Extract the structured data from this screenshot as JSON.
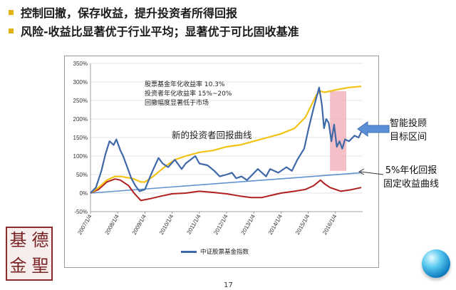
{
  "bullets": [
    {
      "text": "控制回撤，保存收益，提升投资者所得回报",
      "color": "#e0b214"
    },
    {
      "text": "风险-收益比显著优于行业平均；显著优于可比固收基准",
      "color": "#e0b214"
    }
  ],
  "annotations": {
    "stock_fund_return": "股票基金年化收益率 10.3%",
    "investor_return": "投资者年化收益率  15%~20%",
    "drawdown": "回撤幅度显著低于市场",
    "new_investor_curve": "新的投资者回报曲线",
    "smart_advisor_line1": "智能投顾",
    "smart_advisor_line2": "目标区间",
    "fixed_income_line1": "5%年化回报",
    "fixed_income_line2": "固定收益曲线"
  },
  "page_number": "17",
  "seal": {
    "chars": [
      "基",
      "德",
      "金",
      "聖"
    ]
  },
  "icons": [
    "arrow-left-icon",
    "pointer-arrow-icon",
    "globe-icon"
  ],
  "colors": {
    "index": "#3f68a8",
    "investor": "#f2c312",
    "drawdown": "#b01f1f",
    "fixed": "#5f92cf",
    "target_zone": "#f2a9b6"
  },
  "chart_data": {
    "type": "line",
    "title": "",
    "xlabel": "",
    "ylabel": "",
    "ylim": [
      -50,
      350
    ],
    "yticks": [
      "-50%",
      "0%",
      "50%",
      "100%",
      "150%",
      "200%",
      "250%",
      "300%",
      "350%"
    ],
    "xlim": [
      2007.0,
      2017.0
    ],
    "xticks": [
      "2007/1/4",
      "2008/1/4",
      "2009/1/4",
      "2010/1/4",
      "2011/1/4",
      "2012/1/4",
      "2013/1/4",
      "2014/1/4",
      "2015/1/4",
      "2016/1/4"
    ],
    "legend": {
      "position": "bottom",
      "entries": [
        "中证股票基金指数"
      ]
    },
    "target_zone": {
      "x_start": 2015.8,
      "x_end": 2016.4,
      "y_start": 60,
      "y_end": 275
    },
    "series": [
      {
        "name": "中证股票基金指数",
        "color": "#3f68a8",
        "width": 2.2,
        "x": [
          2007.0,
          2007.2,
          2007.4,
          2007.55,
          2007.7,
          2007.85,
          2007.95,
          2008.1,
          2008.2,
          2008.35,
          2008.5,
          2008.65,
          2008.8,
          2009.0,
          2009.25,
          2009.5,
          2009.65,
          2009.85,
          2010.1,
          2010.35,
          2010.5,
          2010.85,
          2011.0,
          2011.3,
          2011.55,
          2011.75,
          2012.0,
          2012.2,
          2012.35,
          2012.55,
          2012.75,
          2012.95,
          2013.15,
          2013.45,
          2013.6,
          2013.9,
          2014.2,
          2014.4,
          2014.6,
          2014.85,
          2015.0,
          2015.2,
          2015.4,
          2015.5,
          2015.58,
          2015.66,
          2015.75,
          2015.85,
          2015.95,
          2016.05,
          2016.15,
          2016.25,
          2016.35,
          2016.5,
          2016.7,
          2016.85,
          2016.95
        ],
        "y": [
          0,
          15,
          60,
          105,
          140,
          130,
          145,
          115,
          100,
          70,
          40,
          20,
          5,
          10,
          55,
          95,
          80,
          70,
          90,
          65,
          80,
          100,
          80,
          75,
          60,
          45,
          50,
          55,
          40,
          45,
          35,
          50,
          65,
          45,
          65,
          55,
          70,
          60,
          90,
          120,
          170,
          230,
          285,
          240,
          175,
          200,
          190,
          140,
          185,
          125,
          140,
          120,
          145,
          140,
          155,
          150,
          165
        ]
      },
      {
        "name": "投资者回报曲线",
        "color": "#f2c312",
        "width": 2.2,
        "x": [
          2007.0,
          2007.3,
          2007.6,
          2007.9,
          2008.1,
          2008.35,
          2008.6,
          2008.85,
          2009.0,
          2009.3,
          2009.55,
          2009.8,
          2010.1,
          2010.5,
          2011.0,
          2011.5,
          2012.0,
          2012.5,
          2013.0,
          2013.5,
          2014.0,
          2014.5,
          2014.9,
          2015.1,
          2015.3,
          2015.45,
          2015.6,
          2015.8,
          2016.1,
          2016.5,
          2016.95
        ],
        "y": [
          0,
          15,
          35,
          45,
          45,
          42,
          38,
          30,
          30,
          45,
          60,
          75,
          90,
          100,
          110,
          115,
          125,
          130,
          140,
          150,
          160,
          175,
          205,
          235,
          265,
          275,
          272,
          275,
          280,
          285,
          288
        ]
      },
      {
        "name": "回撤曲线",
        "color": "#b01f1f",
        "width": 2.0,
        "x": [
          2007.0,
          2007.3,
          2007.6,
          2007.9,
          2008.1,
          2008.4,
          2008.6,
          2008.85,
          2009.2,
          2009.6,
          2010.0,
          2010.5,
          2011.0,
          2011.5,
          2012.0,
          2012.5,
          2012.9,
          2013.3,
          2013.7,
          2014.0,
          2014.5,
          2014.9,
          2015.2,
          2015.45,
          2015.6,
          2015.8,
          2016.0,
          2016.2,
          2016.5,
          2016.95
        ],
        "y": [
          0,
          10,
          30,
          38,
          35,
          20,
          0,
          -20,
          -15,
          -8,
          -2,
          0,
          5,
          2,
          -2,
          -8,
          -12,
          -12,
          -5,
          0,
          5,
          10,
          20,
          35,
          25,
          15,
          10,
          5,
          8,
          15
        ]
      },
      {
        "name": "5%年化回报固定收益曲线",
        "color": "#5f92cf",
        "width": 1.6,
        "x": [
          2007.0,
          2016.95
        ],
        "y": [
          0,
          55
        ]
      }
    ]
  }
}
